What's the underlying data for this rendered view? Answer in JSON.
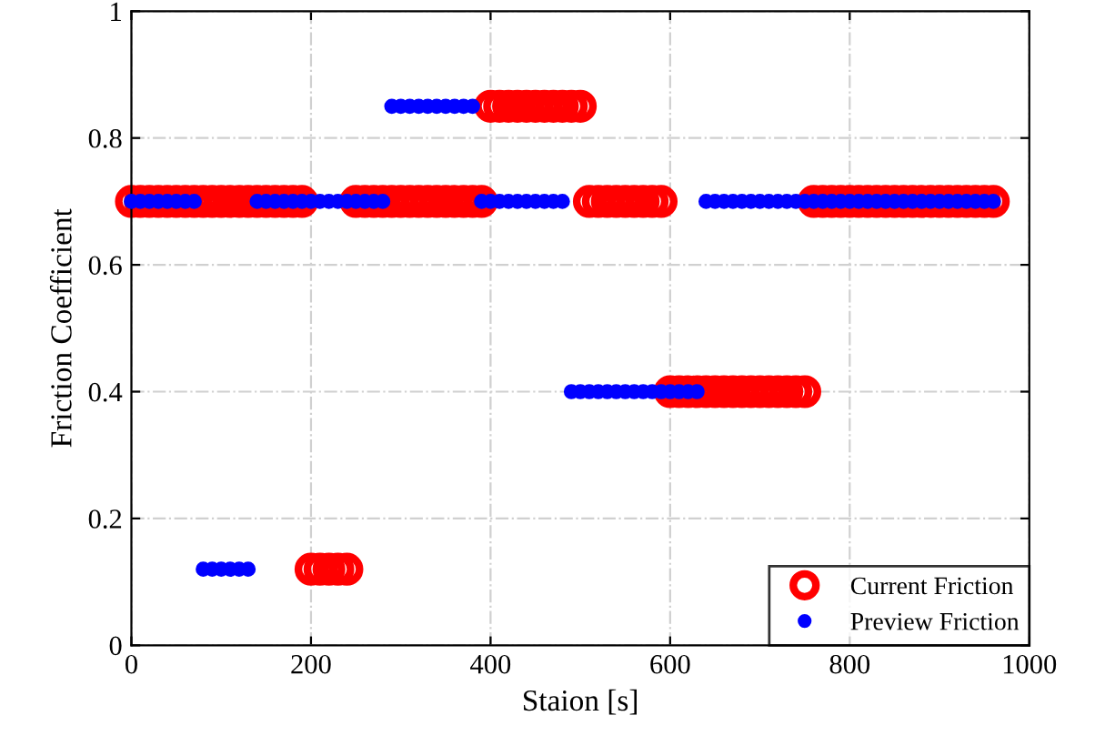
{
  "chart_data": {
    "type": "scatter",
    "xlabel": "Staion [s]",
    "ylabel": "Friction Coefficient",
    "x": [
      0,
      10,
      20,
      30,
      40,
      50,
      60,
      70,
      80,
      90,
      100,
      110,
      120,
      130,
      140,
      150,
      160,
      170,
      180,
      190,
      200,
      210,
      220,
      230,
      240,
      250,
      260,
      270,
      280,
      290,
      300,
      310,
      320,
      330,
      340,
      350,
      360,
      370,
      380,
      390,
      400,
      410,
      420,
      430,
      440,
      450,
      460,
      470,
      480,
      490,
      500,
      510,
      520,
      530,
      540,
      550,
      560,
      570,
      580,
      590,
      600,
      610,
      620,
      630,
      640,
      650,
      660,
      670,
      680,
      690,
      700,
      710,
      720,
      730,
      740,
      750,
      760,
      770,
      780,
      790,
      800,
      810,
      820,
      830,
      840,
      850,
      860,
      870,
      880,
      890,
      900,
      910,
      920,
      930,
      940,
      950,
      960
    ],
    "series": [
      {
        "name": "Current Friction",
        "color": "#ff0000",
        "values": [
          0.7,
          0.7,
          0.7,
          0.7,
          0.7,
          0.7,
          0.7,
          0.7,
          0.7,
          0.7,
          0.7,
          0.7,
          0.7,
          0.7,
          0.7,
          0.7,
          0.7,
          0.7,
          0.7,
          0.7,
          0.12,
          0.12,
          0.12,
          0.12,
          0.12,
          0.7,
          0.7,
          0.7,
          0.7,
          0.7,
          0.7,
          0.7,
          0.7,
          0.7,
          0.7,
          0.7,
          0.7,
          0.7,
          0.7,
          0.7,
          0.85,
          0.85,
          0.85,
          0.85,
          0.85,
          0.85,
          0.85,
          0.85,
          0.85,
          0.85,
          0.85,
          0.7,
          0.7,
          0.7,
          0.7,
          0.7,
          0.7,
          0.7,
          0.7,
          0.7,
          0.4,
          0.4,
          0.4,
          0.4,
          0.4,
          0.4,
          0.4,
          0.4,
          0.4,
          0.4,
          0.4,
          0.4,
          0.4,
          0.4,
          0.4,
          0.4,
          0.7,
          0.7,
          0.7,
          0.7,
          0.7,
          0.7,
          0.7,
          0.7,
          0.7,
          0.7,
          0.7,
          0.7,
          0.7,
          0.7,
          0.7,
          0.7,
          0.7,
          0.7,
          0.7,
          0.7,
          0.7
        ]
      },
      {
        "name": "Preview Friction",
        "color": "#0000ff",
        "values": [
          0.7,
          0.7,
          0.7,
          0.7,
          0.7,
          0.7,
          0.7,
          0.7,
          0.12,
          0.12,
          0.12,
          0.12,
          0.12,
          0.12,
          0.7,
          0.7,
          0.7,
          0.7,
          0.7,
          0.7,
          0.7,
          0.7,
          0.7,
          0.7,
          0.7,
          0.7,
          0.7,
          0.7,
          0.7,
          0.85,
          0.85,
          0.85,
          0.85,
          0.85,
          0.85,
          0.85,
          0.85,
          0.85,
          0.85,
          0.7,
          0.7,
          0.7,
          0.7,
          0.7,
          0.7,
          0.7,
          0.7,
          0.7,
          0.7,
          0.4,
          0.4,
          0.4,
          0.4,
          0.4,
          0.4,
          0.4,
          0.4,
          0.4,
          0.4,
          0.4,
          0.4,
          0.4,
          0.4,
          0.4,
          0.7,
          0.7,
          0.7,
          0.7,
          0.7,
          0.7,
          0.7,
          0.7,
          0.7,
          0.7,
          0.7,
          0.7,
          0.7,
          0.7,
          0.7,
          0.7,
          0.7,
          0.7,
          0.7,
          0.7,
          0.7,
          0.7,
          0.7,
          0.7,
          0.7,
          0.7,
          0.7,
          0.7,
          0.7,
          0.7,
          0.7,
          0.7,
          0.7
        ]
      }
    ],
    "xlim": [
      0,
      1000
    ],
    "xticks": [
      0,
      200,
      400,
      600,
      800,
      1000
    ],
    "ylim": [
      0,
      1
    ],
    "yticks": [
      0,
      0.2,
      0.4,
      0.6,
      0.8,
      1
    ],
    "grid": true,
    "legend": "bottom right",
    "marker": "circle"
  }
}
